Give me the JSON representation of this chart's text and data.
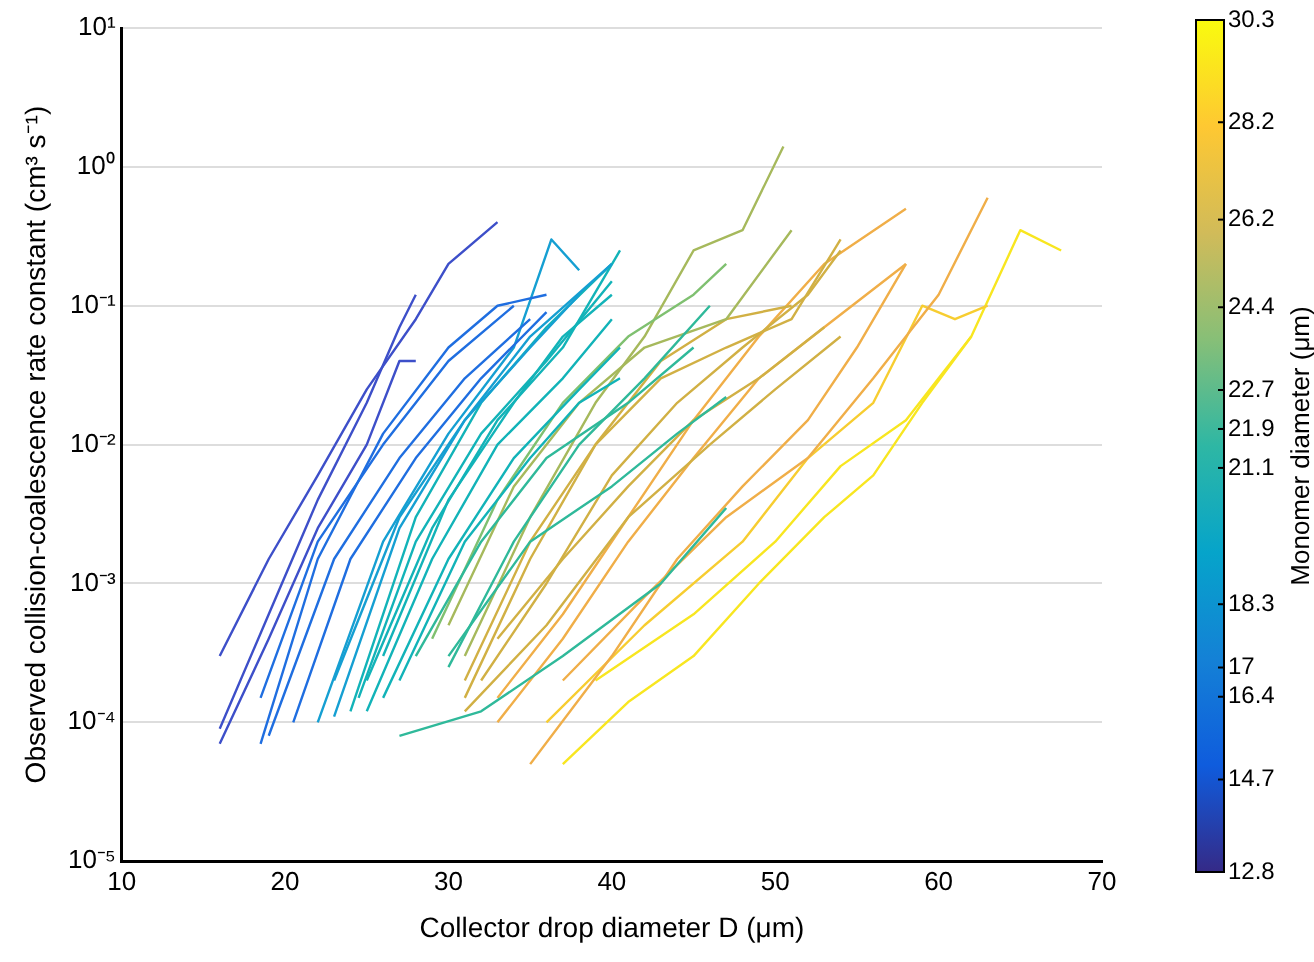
{
  "chart_data": {
    "type": "line",
    "xlabel": "Collector drop diameter D (μm)",
    "ylabel": "Observed collision-coalescence rate constant (cm³ s⁻¹)",
    "clabel": "Monomer diameter (μm)",
    "log": "y",
    "grid": "y",
    "legend": false,
    "marker": "none",
    "line_style": "solid",
    "xlim": [
      10,
      70
    ],
    "xticks": [
      10,
      20,
      30,
      40,
      50,
      60,
      70
    ],
    "ylim": [
      1e-05,
      10
    ],
    "yticks": [
      {
        "value": 1e-05,
        "label": "10⁻⁵"
      },
      {
        "value": 0.0001,
        "label": "10⁻⁴"
      },
      {
        "value": 0.001,
        "label": "10⁻³"
      },
      {
        "value": 0.01,
        "label": "10⁻²"
      },
      {
        "value": 0.1,
        "label": "10⁻¹"
      },
      {
        "value": 1,
        "label": "10⁰"
      },
      {
        "value": 10,
        "label": "10¹"
      }
    ],
    "clim": [
      12.8,
      30.3
    ],
    "cticks": [
      12.8,
      14.7,
      16.4,
      17,
      18.3,
      21.1,
      21.9,
      22.7,
      24.4,
      26.2,
      28.2,
      30.3
    ],
    "series": [
      {
        "color": "#3d4fc9",
        "x": [
          16,
          19,
          22,
          25,
          28,
          30,
          33
        ],
        "values": [
          0.0003,
          0.0015,
          0.006,
          0.025,
          0.08,
          0.2,
          0.4
        ]
      },
      {
        "color": "#3d4fc9",
        "x": [
          16,
          19,
          22,
          25,
          27,
          28
        ],
        "values": [
          9e-05,
          0.0006,
          0.004,
          0.02,
          0.07,
          0.12
        ]
      },
      {
        "color": "#3d4fc9",
        "x": [
          16,
          19,
          22,
          25,
          27,
          28
        ],
        "values": [
          7e-05,
          0.0004,
          0.0025,
          0.01,
          0.04,
          0.04
        ]
      },
      {
        "color": "#1f6ee0",
        "x": [
          18.5,
          22,
          26,
          30,
          33,
          36
        ],
        "values": [
          7e-05,
          0.0015,
          0.012,
          0.05,
          0.1,
          0.12
        ]
      },
      {
        "color": "#1f6ee0",
        "x": [
          18.5,
          22,
          26,
          30,
          34
        ],
        "values": [
          0.00015,
          0.002,
          0.01,
          0.04,
          0.1
        ]
      },
      {
        "color": "#1f6ee0",
        "x": [
          19,
          23,
          27,
          31,
          35
        ],
        "values": [
          8e-05,
          0.0015,
          0.008,
          0.03,
          0.08
        ]
      },
      {
        "color": "#1f6ee0",
        "x": [
          20.5,
          24,
          28,
          32,
          36
        ],
        "values": [
          0.0001,
          0.0015,
          0.008,
          0.03,
          0.09
        ]
      },
      {
        "color": "#159fd2",
        "x": [
          22,
          26,
          30,
          34,
          36.3,
          38
        ],
        "values": [
          0.0001,
          0.002,
          0.012,
          0.05,
          0.3,
          0.18
        ]
      },
      {
        "color": "#159fd2",
        "x": [
          23,
          27,
          31,
          35,
          38
        ],
        "values": [
          0.00011,
          0.0025,
          0.015,
          0.05,
          0.12
        ]
      },
      {
        "color": "#159fd2",
        "x": [
          23,
          27,
          31,
          35,
          40
        ],
        "values": [
          0.0002,
          0.003,
          0.015,
          0.06,
          0.2
        ]
      },
      {
        "color": "#12b3b8",
        "x": [
          24,
          28,
          32,
          36,
          40
        ],
        "values": [
          0.00012,
          0.003,
          0.02,
          0.07,
          0.2
        ]
      },
      {
        "color": "#12b3b8",
        "x": [
          24.5,
          28,
          32,
          36,
          40
        ],
        "values": [
          0.00015,
          0.002,
          0.012,
          0.04,
          0.15
        ]
      },
      {
        "color": "#12b3b8",
        "x": [
          25,
          29,
          33,
          37,
          40
        ],
        "values": [
          0.00012,
          0.0015,
          0.01,
          0.03,
          0.08
        ]
      },
      {
        "color": "#12b3b8",
        "x": [
          25,
          29,
          33,
          37,
          40.5
        ],
        "values": [
          0.0002,
          0.0025,
          0.015,
          0.05,
          0.25
        ]
      },
      {
        "color": "#12b3b8",
        "x": [
          26,
          30,
          34,
          38,
          40.5
        ],
        "values": [
          0.00015,
          0.0015,
          0.008,
          0.025,
          0.05
        ]
      },
      {
        "color": "#12b3b8",
        "x": [
          27,
          31,
          35,
          38,
          40.5
        ],
        "values": [
          0.0002,
          0.002,
          0.008,
          0.02,
          0.03
        ]
      },
      {
        "color": "#12b3b8",
        "x": [
          26,
          30,
          34,
          37,
          40
        ],
        "values": [
          0.0003,
          0.004,
          0.02,
          0.06,
          0.12
        ]
      },
      {
        "color": "#2fb99a",
        "x": [
          27,
          32,
          37,
          43,
          47
        ],
        "values": [
          8e-05,
          0.00012,
          0.0003,
          0.001,
          0.0035
        ]
      },
      {
        "color": "#2fb99a",
        "x": [
          28,
          32,
          36,
          41,
          45
        ],
        "values": [
          0.0003,
          0.002,
          0.008,
          0.02,
          0.05
        ]
      },
      {
        "color": "#2fb99a",
        "x": [
          30,
          34,
          38,
          42,
          46
        ],
        "values": [
          0.00025,
          0.002,
          0.01,
          0.03,
          0.1
        ]
      },
      {
        "color": "#2fb99a",
        "x": [
          30,
          35,
          40,
          44,
          47
        ],
        "values": [
          0.0003,
          0.002,
          0.005,
          0.012,
          0.022
        ]
      },
      {
        "color": "#7fc070",
        "x": [
          29,
          33,
          37,
          41,
          45,
          47
        ],
        "values": [
          0.0004,
          0.004,
          0.02,
          0.06,
          0.12,
          0.2
        ]
      },
      {
        "color": "#a6b95c",
        "x": [
          31,
          35,
          39,
          42,
          45,
          48,
          50.5
        ],
        "values": [
          0.0003,
          0.003,
          0.02,
          0.06,
          0.25,
          0.35,
          1.4
        ]
      },
      {
        "color": "#a6b95c",
        "x": [
          30,
          34,
          38,
          42,
          47,
          51
        ],
        "values": [
          0.0005,
          0.005,
          0.02,
          0.05,
          0.08,
          0.35
        ]
      },
      {
        "color": "#d1b044",
        "x": [
          31,
          35,
          39,
          43,
          47,
          51,
          54
        ],
        "values": [
          0.0002,
          0.002,
          0.01,
          0.03,
          0.05,
          0.08,
          0.3
        ]
      },
      {
        "color": "#d1b044",
        "x": [
          31,
          35,
          39,
          43,
          47,
          51
        ],
        "values": [
          0.00015,
          0.0015,
          0.01,
          0.04,
          0.08,
          0.1
        ]
      },
      {
        "color": "#d1b044",
        "x": [
          32,
          36,
          40,
          44,
          48,
          52,
          54
        ],
        "values": [
          0.0002,
          0.001,
          0.006,
          0.02,
          0.05,
          0.12,
          0.25
        ]
      },
      {
        "color": "#d1b044",
        "x": [
          33,
          37,
          41,
          45,
          49,
          53
        ],
        "values": [
          0.0004,
          0.0015,
          0.005,
          0.015,
          0.03,
          0.07
        ]
      },
      {
        "color": "#d1b044",
        "x": [
          31,
          36,
          41,
          46,
          50,
          54
        ],
        "values": [
          0.00012,
          0.0005,
          0.003,
          0.01,
          0.025,
          0.06
        ]
      },
      {
        "color": "#f0ae48",
        "x": [
          33,
          37,
          41,
          45,
          49,
          53,
          58
        ],
        "values": [
          0.00015,
          0.0006,
          0.003,
          0.015,
          0.06,
          0.2,
          0.5
        ]
      },
      {
        "color": "#f0ae48",
        "x": [
          33,
          37,
          41,
          45,
          49,
          53,
          58
        ],
        "values": [
          0.0001,
          0.0004,
          0.002,
          0.008,
          0.03,
          0.07,
          0.2
        ]
      },
      {
        "color": "#f0ae48",
        "x": [
          35,
          40,
          44,
          48,
          52,
          55,
          58
        ],
        "values": [
          5e-05,
          0.0003,
          0.0015,
          0.005,
          0.015,
          0.05,
          0.2
        ]
      },
      {
        "color": "#f0ae48",
        "x": [
          37,
          42,
          47,
          52,
          56,
          60,
          63
        ],
        "values": [
          0.0002,
          0.0008,
          0.003,
          0.008,
          0.03,
          0.12,
          0.6
        ]
      },
      {
        "color": "#f7cd30",
        "x": [
          36,
          42,
          48,
          52,
          56,
          59,
          61,
          63
        ],
        "values": [
          0.0001,
          0.0005,
          0.002,
          0.008,
          0.02,
          0.1,
          0.08,
          0.1
        ]
      },
      {
        "color": "#f8e620",
        "x": [
          37,
          41,
          45,
          49,
          53,
          56,
          59,
          62,
          65,
          67.5
        ],
        "values": [
          5e-05,
          0.00014,
          0.0003,
          0.001,
          0.003,
          0.006,
          0.02,
          0.06,
          0.35,
          0.25
        ]
      },
      {
        "color": "#f8e620",
        "x": [
          39,
          45,
          50,
          54,
          58,
          60,
          62
        ],
        "values": [
          0.0002,
          0.0006,
          0.002,
          0.007,
          0.015,
          0.03,
          0.06
        ]
      }
    ]
  }
}
